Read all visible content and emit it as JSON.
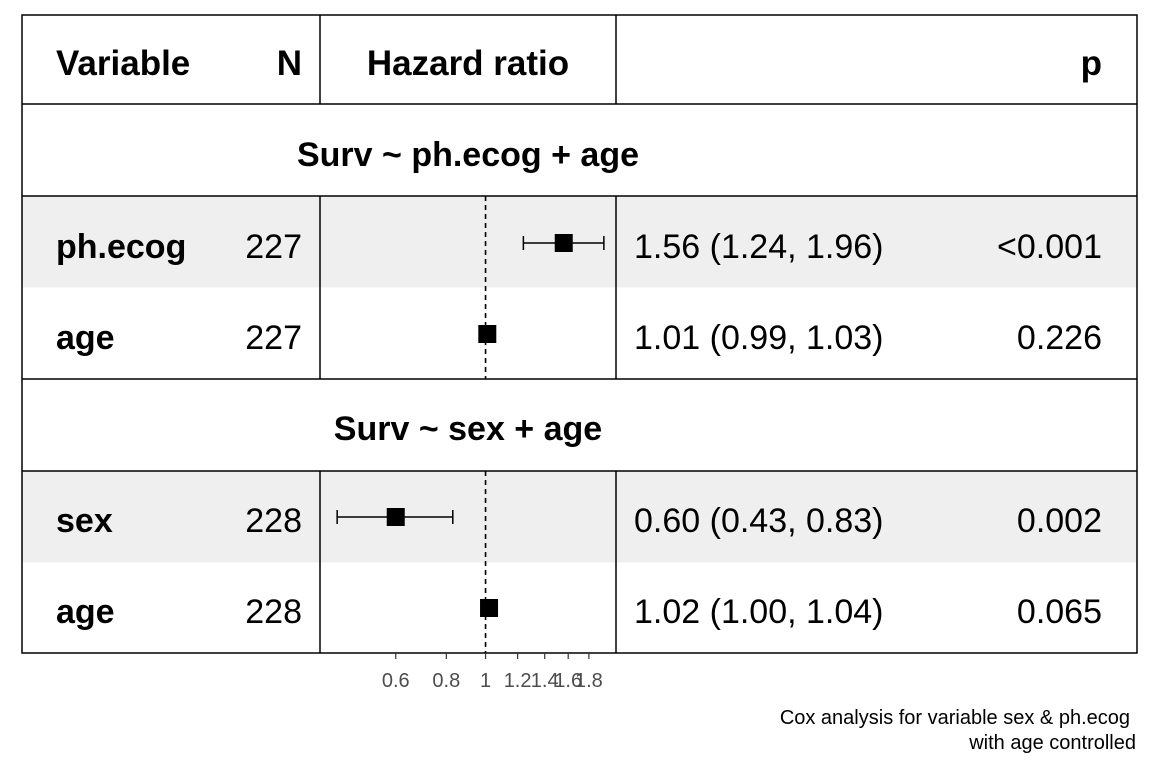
{
  "chart_data": {
    "type": "forest",
    "columns": {
      "variable": "Variable",
      "n": "N",
      "hazard_ratio": "Hazard ratio",
      "p": "p"
    },
    "groups": [
      {
        "title": "Surv ~ ph.ecog + age",
        "rows": [
          {
            "variable": "ph.ecog",
            "n": "227",
            "hr": 1.56,
            "lower": 1.24,
            "upper": 1.96,
            "ci_text": "1.56 (1.24, 1.96)",
            "p": "<0.001"
          },
          {
            "variable": "age",
            "n": "227",
            "hr": 1.01,
            "lower": 0.99,
            "upper": 1.03,
            "ci_text": "1.01 (0.99, 1.03)",
            "p": "0.226"
          }
        ]
      },
      {
        "title": "Surv ~ sex + age",
        "rows": [
          {
            "variable": "sex",
            "n": "228",
            "hr": 0.6,
            "lower": 0.43,
            "upper": 0.83,
            "ci_text": "0.60 (0.43, 0.83)",
            "p": "0.002"
          },
          {
            "variable": "age",
            "n": "228",
            "hr": 1.02,
            "lower": 1.0,
            "upper": 1.04,
            "ci_text": "1.02 (1.00, 1.04)",
            "p": "0.065"
          }
        ]
      }
    ],
    "x_scale": "log",
    "xlim": [
      0.39,
      2.1
    ],
    "reference_line": 1,
    "x_ticks": [
      {
        "value": 0.6,
        "label": "0.6"
      },
      {
        "value": 0.8,
        "label": "0.8"
      },
      {
        "value": 1.0,
        "label": "1"
      },
      {
        "value": 1.2,
        "label": "1.2"
      },
      {
        "value": 1.4,
        "label": "1.4"
      },
      {
        "value": 1.6,
        "label": "1.6"
      },
      {
        "value": 1.8,
        "label": "1.8"
      }
    ],
    "caption_lines": [
      "Cox analysis for variable sex & ph.ecog ",
      "with age controlled"
    ],
    "colors": {
      "stripe": "#efefef",
      "border": "#000000",
      "tick_text": "#4d4d4d"
    }
  }
}
